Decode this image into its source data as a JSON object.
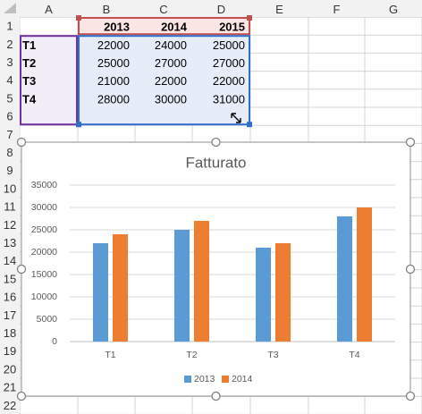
{
  "sheet": {
    "columns": [
      "A",
      "B",
      "C",
      "D",
      "E",
      "F",
      "G"
    ],
    "rows": [
      "1",
      "2",
      "3",
      "4",
      "5",
      "6",
      "7",
      "8",
      "9",
      "10",
      "11",
      "12",
      "13",
      "14",
      "15",
      "16",
      "17",
      "18",
      "19",
      "20",
      "21",
      "22"
    ],
    "header_row": [
      "",
      "2013",
      "2014",
      "2015"
    ],
    "data_rows": [
      [
        "T1",
        "22000",
        "24000",
        "25000"
      ],
      [
        "T2",
        "25000",
        "27000",
        "27000"
      ],
      [
        "T3",
        "21000",
        "22000",
        "22000"
      ],
      [
        "T4",
        "28000",
        "30000",
        "31000"
      ]
    ]
  },
  "colors": {
    "grid": "#d4d4d4",
    "header_fill": "#f2f2f2",
    "row_range_fill": "#f1eef8",
    "row_range_border": "#7030a0",
    "col_range_fill": "#fbe5e5",
    "col_range_border": "#c0504d",
    "value_range_fill": "#e6edf8",
    "value_range_border": "#2f6fc9",
    "series_2013": "#5b9bd5",
    "series_2014": "#ed7d31"
  },
  "chart_data": {
    "type": "bar",
    "title": "Fatturato",
    "categories": [
      "T1",
      "T2",
      "T3",
      "T4"
    ],
    "series": [
      {
        "name": "2013",
        "values": [
          22000,
          25000,
          21000,
          28000
        ]
      },
      {
        "name": "2014",
        "values": [
          24000,
          27000,
          22000,
          30000
        ]
      }
    ],
    "yticks": [
      "0",
      "5000",
      "10000",
      "15000",
      "20000",
      "25000",
      "30000",
      "35000"
    ],
    "ylim": [
      0,
      35000
    ],
    "grid": true,
    "legend": "bottom",
    "xlabel": "",
    "ylabel": ""
  }
}
